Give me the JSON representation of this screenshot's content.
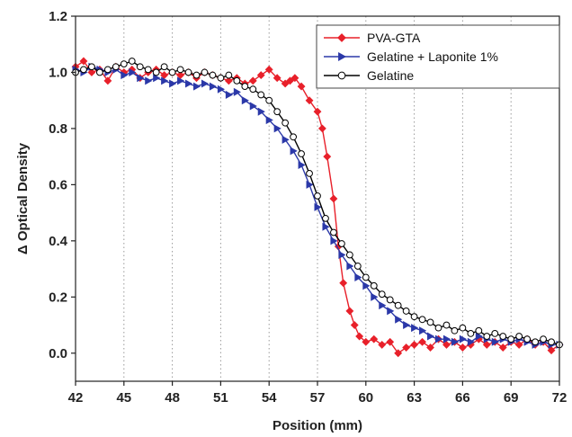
{
  "chart_data": {
    "type": "scatter",
    "xlabel": "Position (mm)",
    "ylabel": "Δ Optical Density",
    "xlim": [
      42,
      72
    ],
    "ylim": [
      -0.1,
      1.2
    ],
    "xticks": [
      42,
      45,
      48,
      51,
      54,
      57,
      60,
      63,
      66,
      69,
      72
    ],
    "yticks": [
      0.0,
      0.2,
      0.4,
      0.6,
      0.8,
      1.0,
      1.2
    ],
    "ytick_labels": [
      "0.0",
      "0.2",
      "0.4",
      "0.6",
      "0.8",
      "1.0",
      "1.2"
    ],
    "grid": "vertical dotted",
    "legend_position": "top-right",
    "series": [
      {
        "name": "PVA-GTA",
        "color": "#e8202a",
        "marker": "diamond",
        "x": [
          42,
          42.5,
          43,
          43.5,
          44,
          44.5,
          45,
          45.5,
          46,
          46.5,
          47,
          47.5,
          48,
          48.5,
          49,
          49.5,
          50,
          50.5,
          51,
          51.5,
          52,
          52.5,
          53,
          53.5,
          54,
          54.5,
          55,
          55.3,
          55.6,
          56,
          56.5,
          57,
          57.3,
          57.6,
          58,
          58.3,
          58.6,
          59,
          59.3,
          59.6,
          60,
          60.5,
          61,
          61.5,
          62,
          62.5,
          63,
          63.5,
          64,
          64.5,
          65,
          65.5,
          66,
          66.5,
          67,
          67.5,
          68,
          68.5,
          69,
          69.5,
          70,
          70.5,
          71,
          71.5,
          72
        ],
        "y": [
          1.02,
          1.04,
          1.0,
          1.01,
          0.97,
          1.02,
          1.0,
          1.01,
          0.98,
          1.0,
          1.01,
          0.99,
          1.0,
          0.99,
          1.0,
          0.98,
          1.0,
          0.99,
          0.98,
          0.97,
          0.98,
          0.96,
          0.97,
          0.99,
          1.01,
          0.98,
          0.96,
          0.97,
          0.98,
          0.95,
          0.9,
          0.86,
          0.8,
          0.7,
          0.55,
          0.38,
          0.25,
          0.15,
          0.1,
          0.06,
          0.04,
          0.05,
          0.03,
          0.04,
          0.0,
          0.02,
          0.03,
          0.04,
          0.02,
          0.05,
          0.03,
          0.04,
          0.02,
          0.03,
          0.05,
          0.03,
          0.04,
          0.02,
          0.04,
          0.03,
          0.05,
          0.03,
          0.04,
          0.01,
          0.03
        ]
      },
      {
        "name": "Gelatine + Laponite 1%",
        "color": "#2b38a8",
        "marker": "triangle-right",
        "x": [
          42,
          42.5,
          43,
          43.5,
          44,
          44.5,
          45,
          45.5,
          46,
          46.5,
          47,
          47.5,
          48,
          48.5,
          49,
          49.5,
          50,
          50.5,
          51,
          51.5,
          52,
          52.5,
          53,
          53.5,
          54,
          54.5,
          55,
          55.5,
          56,
          56.5,
          57,
          57.5,
          58,
          58.5,
          59,
          59.5,
          60,
          60.5,
          61,
          61.5,
          62,
          62.5,
          63,
          63.5,
          64,
          64.5,
          65,
          65.5,
          66,
          66.5,
          67,
          67.5,
          68,
          68.5,
          69,
          69.5,
          70,
          70.5,
          71,
          71.5,
          72
        ],
        "y": [
          1.01,
          1.0,
          1.02,
          1.01,
          1.0,
          1.01,
          0.99,
          1.0,
          0.98,
          0.97,
          0.98,
          0.97,
          0.96,
          0.97,
          0.96,
          0.95,
          0.96,
          0.95,
          0.94,
          0.92,
          0.93,
          0.9,
          0.88,
          0.86,
          0.83,
          0.8,
          0.76,
          0.72,
          0.67,
          0.6,
          0.52,
          0.45,
          0.4,
          0.35,
          0.31,
          0.27,
          0.24,
          0.2,
          0.17,
          0.15,
          0.12,
          0.1,
          0.09,
          0.08,
          0.06,
          0.05,
          0.05,
          0.04,
          0.05,
          0.04,
          0.06,
          0.05,
          0.04,
          0.05,
          0.04,
          0.05,
          0.04,
          0.03,
          0.04,
          0.03,
          0.03
        ]
      },
      {
        "name": "Gelatine",
        "color": "#000000",
        "marker": "circle-open",
        "x": [
          42,
          42.5,
          43,
          43.5,
          44,
          44.5,
          45,
          45.5,
          46,
          46.5,
          47,
          47.5,
          48,
          48.5,
          49,
          49.5,
          50,
          50.5,
          51,
          51.5,
          52,
          52.5,
          53,
          53.5,
          54,
          54.5,
          55,
          55.5,
          56,
          56.5,
          57,
          57.5,
          58,
          58.5,
          59,
          59.5,
          60,
          60.5,
          61,
          61.5,
          62,
          62.5,
          63,
          63.5,
          64,
          64.5,
          65,
          65.5,
          66,
          66.5,
          67,
          67.5,
          68,
          68.5,
          69,
          69.5,
          70,
          70.5,
          71,
          71.5,
          72
        ],
        "y": [
          1.0,
          1.01,
          1.02,
          1.0,
          1.01,
          1.02,
          1.03,
          1.04,
          1.02,
          1.01,
          1.0,
          1.02,
          1.0,
          1.01,
          1.0,
          0.99,
          1.0,
          0.99,
          0.98,
          0.99,
          0.97,
          0.95,
          0.94,
          0.92,
          0.9,
          0.86,
          0.82,
          0.77,
          0.71,
          0.64,
          0.56,
          0.48,
          0.43,
          0.39,
          0.35,
          0.31,
          0.27,
          0.24,
          0.21,
          0.19,
          0.17,
          0.15,
          0.13,
          0.12,
          0.11,
          0.09,
          0.1,
          0.08,
          0.09,
          0.07,
          0.08,
          0.06,
          0.07,
          0.06,
          0.05,
          0.06,
          0.05,
          0.04,
          0.05,
          0.04,
          0.03
        ]
      }
    ]
  }
}
